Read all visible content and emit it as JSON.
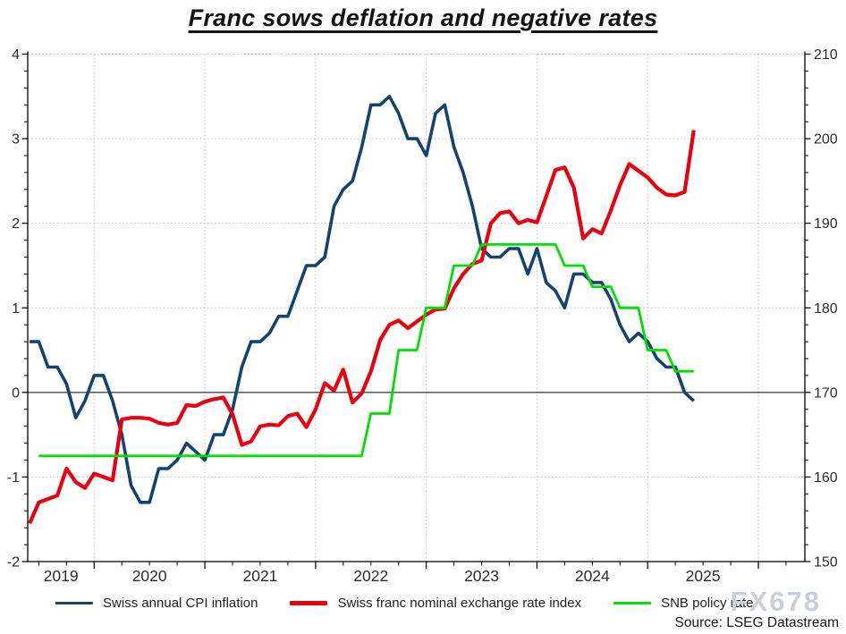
{
  "title": "Franc sows deflation and negative rates",
  "watermark": "FX678",
  "source": "Source: LSEG Datastream",
  "legend": {
    "items": [
      {
        "label": "Swiss annual CPI inflation"
      },
      {
        "label": "Swiss franc nominal exchange rate index"
      },
      {
        "label": "SNB policy rate"
      }
    ]
  },
  "chart_data": {
    "type": "line",
    "title": "Franc sows deflation and negative rates",
    "frequency": "monthly",
    "legend_position": "bottom",
    "grid": true,
    "colors": {
      "grid": "#bcbcbc",
      "axis": "#000000",
      "zero_line": "#000000",
      "tick_text": "#2b2b2b"
    },
    "x_axis": {
      "min": 2019.4,
      "max": 2026.42,
      "year_labels": [
        "2019",
        "2020",
        "2021",
        "2022",
        "2023",
        "2024",
        "2025"
      ],
      "gridline_years": [
        2020,
        2021,
        2022,
        2023,
        2024,
        2025,
        2026
      ],
      "minor_tick_step_years": 0.25
    },
    "left_axis": {
      "min": -2,
      "max": 4,
      "label_values": [
        4,
        3,
        2,
        1,
        0,
        -1,
        -2
      ],
      "minor_step": 0.2,
      "zero_line_value": 0
    },
    "right_axis": {
      "min": 150,
      "max": 210,
      "label_values": [
        210,
        200,
        190,
        180,
        170,
        160,
        150
      ],
      "minor_step": 2
    },
    "series": [
      {
        "name": "Swiss annual CPI inflation",
        "color": "#16426f",
        "width": 3.6,
        "axis": "left",
        "start": 2019.417,
        "values": [
          0.6,
          0.6,
          0.3,
          0.3,
          0.1,
          -0.3,
          -0.1,
          0.2,
          0.2,
          -0.1,
          -0.5,
          -1.1,
          -1.3,
          -1.3,
          -0.9,
          -0.9,
          -0.8,
          -0.6,
          -0.7,
          -0.8,
          -0.5,
          -0.5,
          -0.2,
          0.3,
          0.6,
          0.6,
          0.7,
          0.9,
          0.9,
          1.2,
          1.5,
          1.5,
          1.6,
          2.2,
          2.4,
          2.5,
          2.9,
          3.4,
          3.4,
          3.5,
          3.3,
          3.0,
          3.0,
          2.8,
          3.3,
          3.4,
          2.9,
          2.6,
          2.2,
          1.7,
          1.6,
          1.6,
          1.7,
          1.7,
          1.4,
          1.7,
          1.3,
          1.2,
          1.0,
          1.4,
          1.4,
          1.3,
          1.3,
          1.1,
          0.8,
          0.6,
          0.7,
          0.6,
          0.4,
          0.3,
          0.3,
          0.0,
          -0.1
        ]
      },
      {
        "name": "Swiss franc nominal exchange rate index",
        "color": "#e80010",
        "width": 4.2,
        "axis": "right",
        "start": 2019.417,
        "values": [
          154.5,
          157.0,
          157.4,
          157.8,
          161.0,
          159.4,
          158.7,
          160.4,
          160.0,
          159.6,
          166.8,
          167.0,
          167.0,
          166.9,
          166.4,
          166.2,
          166.4,
          168.5,
          168.4,
          168.9,
          169.2,
          169.4,
          167.4,
          163.8,
          164.2,
          166.0,
          166.2,
          166.1,
          167.2,
          167.5,
          165.9,
          168.0,
          171.1,
          170.2,
          172.7,
          168.8,
          169.9,
          172.5,
          176.2,
          178.0,
          178.5,
          177.6,
          178.4,
          179.2,
          179.8,
          179.9,
          182.3,
          184.0,
          185.2,
          185.6,
          190.0,
          191.2,
          191.4,
          190.0,
          190.4,
          190.1,
          193.2,
          196.3,
          196.6,
          194.2,
          188.2,
          189.3,
          188.8,
          191.5,
          194.5,
          197.0,
          196.2,
          195.4,
          194.2,
          193.4,
          193.3,
          193.7,
          201.0
        ]
      },
      {
        "name": "SNB policy rate",
        "color": "#00df00",
        "width": 2.8,
        "axis": "left",
        "start": 2019.5,
        "values": [
          -0.75,
          -0.75,
          -0.75,
          -0.75,
          -0.75,
          -0.75,
          -0.75,
          -0.75,
          -0.75,
          -0.75,
          -0.75,
          -0.75,
          -0.75,
          -0.75,
          -0.75,
          -0.75,
          -0.75,
          -0.75,
          -0.75,
          -0.75,
          -0.75,
          -0.75,
          -0.75,
          -0.75,
          -0.75,
          -0.75,
          -0.75,
          -0.75,
          -0.75,
          -0.75,
          -0.75,
          -0.75,
          -0.75,
          -0.75,
          -0.75,
          -0.75,
          -0.25,
          -0.25,
          -0.25,
          0.5,
          0.5,
          0.5,
          1.0,
          1.0,
          1.0,
          1.5,
          1.5,
          1.5,
          1.75,
          1.75,
          1.75,
          1.75,
          1.75,
          1.75,
          1.75,
          1.75,
          1.75,
          1.5,
          1.5,
          1.5,
          1.25,
          1.25,
          1.25,
          1.0,
          1.0,
          1.0,
          0.5,
          0.5,
          0.5,
          0.25,
          0.25,
          0.25
        ]
      }
    ]
  }
}
